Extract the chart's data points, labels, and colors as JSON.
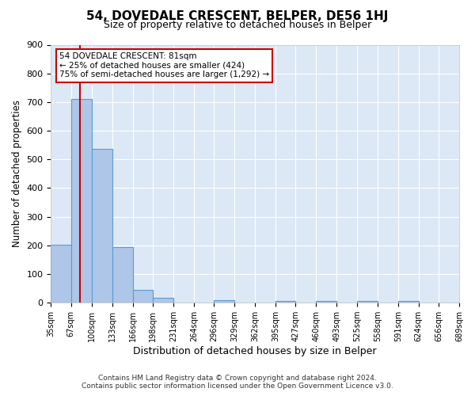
{
  "title": "54, DOVEDALE CRESCENT, BELPER, DE56 1HJ",
  "subtitle": "Size of property relative to detached houses in Belper",
  "xlabel": "Distribution of detached houses by size in Belper",
  "ylabel": "Number of detached properties",
  "bar_edges": [
    35,
    67,
    100,
    133,
    166,
    198,
    231,
    264,
    296,
    329,
    362,
    395,
    427,
    460,
    493,
    525,
    558,
    591,
    624,
    656,
    689
  ],
  "bar_heights": [
    203,
    712,
    536,
    194,
    44,
    17,
    0,
    0,
    10,
    0,
    0,
    6,
    0,
    6,
    0,
    5,
    0,
    5,
    0,
    0
  ],
  "bar_color": "#aec6e8",
  "bar_edge_color": "#5b9bd5",
  "vline_x": 81,
  "vline_color": "#cc0000",
  "ylim": [
    0,
    900
  ],
  "yticks": [
    0,
    100,
    200,
    300,
    400,
    500,
    600,
    700,
    800,
    900
  ],
  "annotation_line1": "54 DOVEDALE CRESCENT: 81sqm",
  "annotation_line2": "← 25% of detached houses are smaller (424)",
  "annotation_line3": "75% of semi-detached houses are larger (1,292) →",
  "annotation_box_color": "#ffffff",
  "annotation_border_color": "#cc0000",
  "footer_line1": "Contains HM Land Registry data © Crown copyright and database right 2024.",
  "footer_line2": "Contains public sector information licensed under the Open Government Licence v3.0.",
  "fig_bg_color": "#ffffff",
  "plot_bg_color": "#dce8f5",
  "grid_color": "#ffffff",
  "tick_labels": [
    "35sqm",
    "67sqm",
    "100sqm",
    "133sqm",
    "166sqm",
    "198sqm",
    "231sqm",
    "264sqm",
    "296sqm",
    "329sqm",
    "362sqm",
    "395sqm",
    "427sqm",
    "460sqm",
    "493sqm",
    "525sqm",
    "558sqm",
    "591sqm",
    "624sqm",
    "656sqm",
    "689sqm"
  ]
}
